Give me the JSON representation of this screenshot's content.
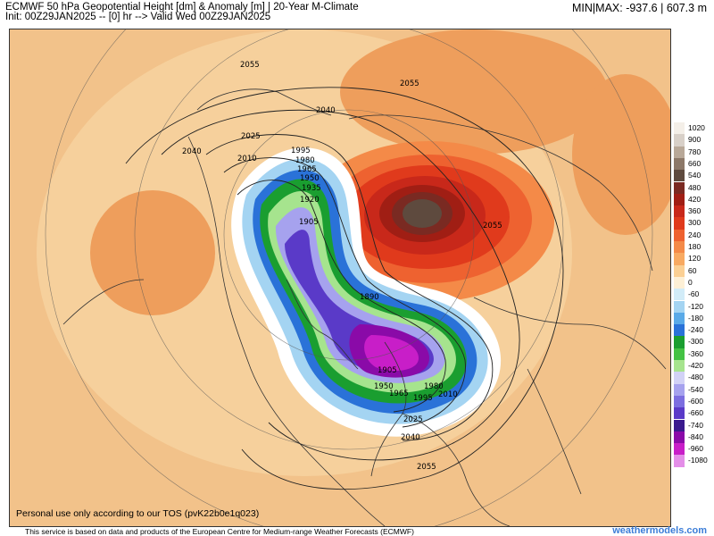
{
  "header": {
    "title": "ECMWF 50 hPa Geopotential Height [dm] & Anomaly [m] | 20-Year M-Climate",
    "init": "Init: 00Z29JAN2025 -- [0] hr --> Valid Wed 00Z29JAN2025",
    "minmax": "MIN|MAX: -937.6 | 607.3 m"
  },
  "map": {
    "contours": [
      "2055",
      "2040",
      "2025",
      "2010",
      "1995",
      "1980",
      "1965",
      "1950",
      "1935",
      "1920",
      "1905",
      "1890"
    ],
    "contour_labels": [
      {
        "text": "2055"
      },
      {
        "text": "2055"
      },
      {
        "text": "2040"
      },
      {
        "text": "2040"
      },
      {
        "text": "2025"
      },
      {
        "text": "2010"
      },
      {
        "text": "1995"
      },
      {
        "text": "1980"
      },
      {
        "text": "1965"
      },
      {
        "text": "1950"
      },
      {
        "text": "1935"
      },
      {
        "text": "1920"
      },
      {
        "text": "1905"
      },
      {
        "text": "1890"
      },
      {
        "text": "2055"
      },
      {
        "text": "1905"
      },
      {
        "text": "1980"
      },
      {
        "text": "1950"
      },
      {
        "text": "1965"
      },
      {
        "text": "1995"
      },
      {
        "text": "2010"
      },
      {
        "text": "2025"
      },
      {
        "text": "2040"
      },
      {
        "text": "2055"
      }
    ],
    "colors": {
      "ocean_warm": "#f2c28a",
      "positive_max": "#5a4a3e",
      "negative_max": "#c020c0"
    }
  },
  "legend": {
    "entries": [
      {
        "label": "1020",
        "color": "#f4efe8"
      },
      {
        "label": "900",
        "color": "#d8d0c8"
      },
      {
        "label": "780",
        "color": "#b8a898"
      },
      {
        "label": "660",
        "color": "#8c7868"
      },
      {
        "label": "540",
        "color": "#5e4a3e"
      },
      {
        "label": "480",
        "color": "#7a2a22"
      },
      {
        "label": "420",
        "color": "#a01e14"
      },
      {
        "label": "360",
        "color": "#c8281a"
      },
      {
        "label": "300",
        "color": "#e03a1c"
      },
      {
        "label": "240",
        "color": "#ee6230"
      },
      {
        "label": "180",
        "color": "#f48a48"
      },
      {
        "label": "120",
        "color": "#f8aa62"
      },
      {
        "label": "60",
        "color": "#fbd094"
      },
      {
        "label": "0",
        "color": "#fdf0d6"
      },
      {
        "label": "-60",
        "color": "#d2ecf8"
      },
      {
        "label": "-120",
        "color": "#a4d4f2"
      },
      {
        "label": "-180",
        "color": "#5aaae8"
      },
      {
        "label": "-240",
        "color": "#2a72d8"
      },
      {
        "label": "-300",
        "color": "#1a9e30"
      },
      {
        "label": "-360",
        "color": "#44c244"
      },
      {
        "label": "-420",
        "color": "#a6e48e"
      },
      {
        "label": "-480",
        "color": "#d2d2f6"
      },
      {
        "label": "-540",
        "color": "#a6a2ee"
      },
      {
        "label": "-600",
        "color": "#7c6ee0"
      },
      {
        "label": "-660",
        "color": "#5a3ac8"
      },
      {
        "label": "-740",
        "color": "#3a1a8e"
      },
      {
        "label": "-840",
        "color": "#8a0aa8"
      },
      {
        "label": "-960",
        "color": "#c81ec8"
      },
      {
        "label": "-1080",
        "color": "#e48ee8"
      }
    ]
  },
  "footer": {
    "tos": "Personal use only according to our TOS (pvK22b0e1q023)",
    "source": "This service is based on data and products of the European Centre for Medium-range Weather Forecasts (ECMWF)",
    "brand": "weathermodels.com"
  }
}
